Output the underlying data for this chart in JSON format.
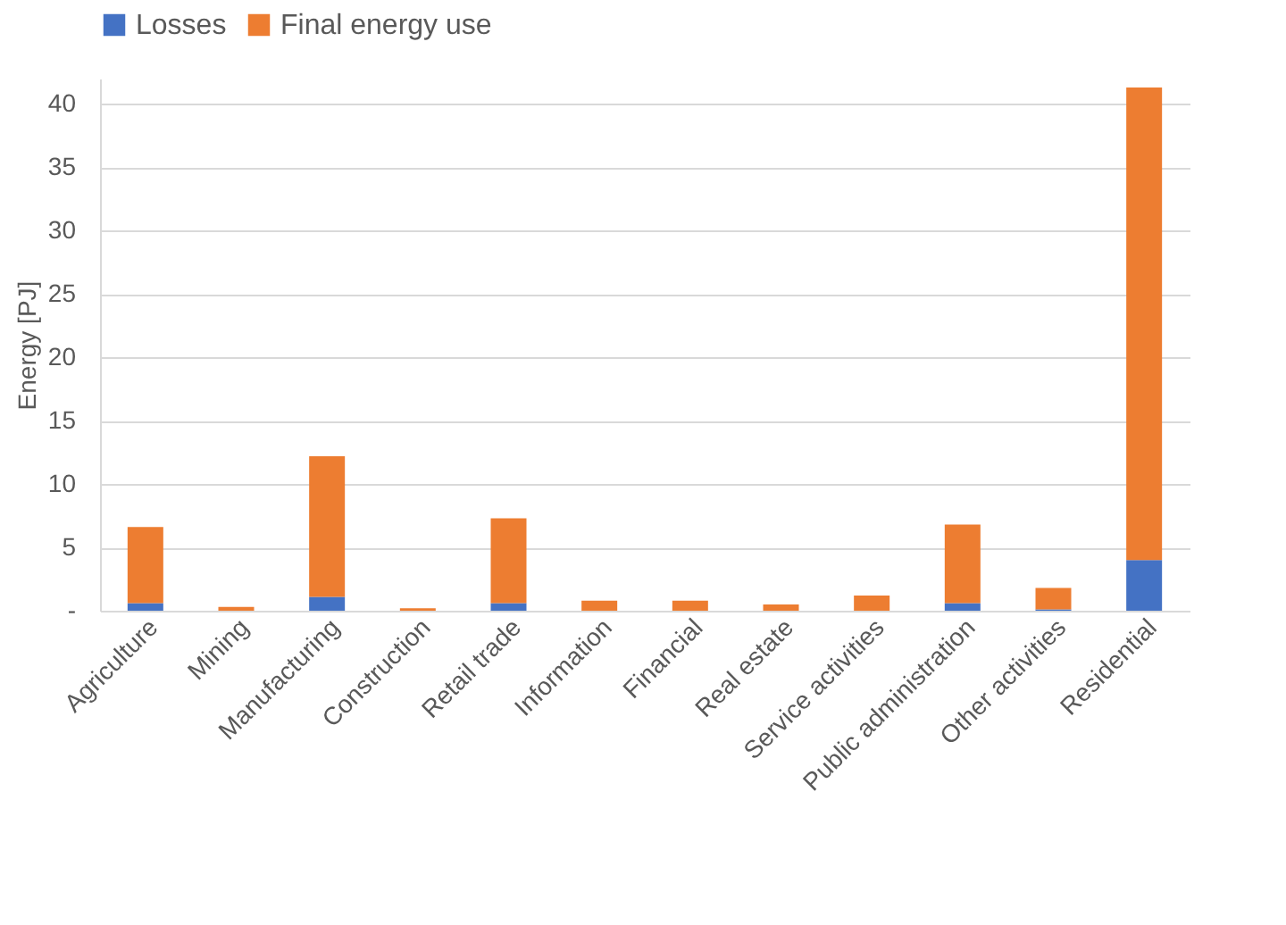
{
  "chart_data": {
    "type": "bar",
    "stacked": true,
    "ylabel": "Energy [PJ]",
    "categories": [
      "Agriculture",
      "Mining",
      "Manufacturing",
      "Construction",
      "Retail trade",
      "Information",
      "Financial",
      "Real estate",
      "Service activities",
      "Public administration",
      "Other activities",
      "Residential"
    ],
    "series": [
      {
        "name": "Losses",
        "color": "#4472c4",
        "values": [
          0.6,
          0,
          1.1,
          0,
          0.6,
          0,
          0,
          0,
          0,
          0.6,
          0.1,
          4.0
        ]
      },
      {
        "name": "Final energy use",
        "color": "#ed7d31",
        "values": [
          6.0,
          0.3,
          11.1,
          0.2,
          6.7,
          0.8,
          0.8,
          0.5,
          1.2,
          6.2,
          1.7,
          37.3
        ]
      }
    ],
    "ylim": [
      0,
      42
    ],
    "yticks": [
      {
        "value": 0,
        "label": "-"
      },
      5,
      10,
      15,
      20,
      25,
      30,
      35,
      40
    ],
    "grid": "y",
    "legend": "top"
  }
}
